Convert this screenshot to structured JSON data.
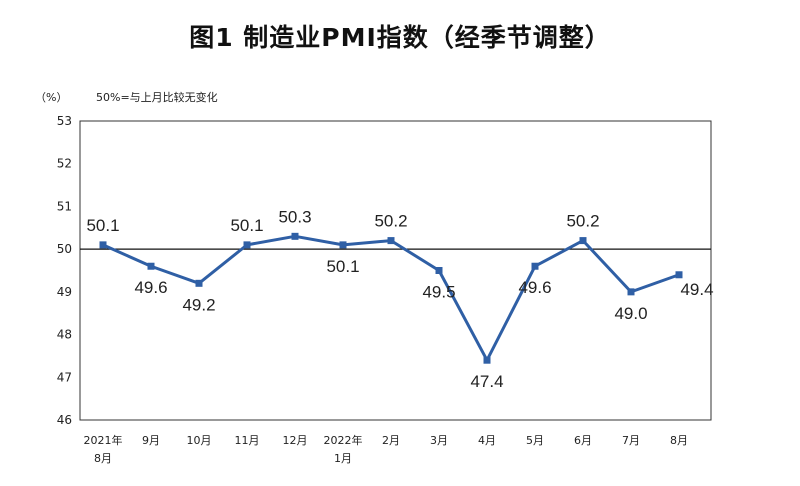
{
  "chart_data": {
    "type": "line",
    "title": "图1 制造业PMI指数（经季节调整）",
    "unit_label": "（%）",
    "reference_note": "50%=与上月比较无变化",
    "reference_value": 50,
    "ylim": [
      46,
      53
    ],
    "yticks": [
      46,
      47,
      48,
      49,
      50,
      51,
      52,
      53
    ],
    "categories": [
      [
        "2021年",
        "8月"
      ],
      [
        "9月"
      ],
      [
        "10月"
      ],
      [
        "11月"
      ],
      [
        "12月"
      ],
      [
        "2022年",
        "1月"
      ],
      [
        "2月"
      ],
      [
        "3月"
      ],
      [
        "4月"
      ],
      [
        "5月"
      ],
      [
        "6月"
      ],
      [
        "7月"
      ],
      [
        "8月"
      ]
    ],
    "values": [
      50.1,
      49.6,
      49.2,
      50.1,
      50.3,
      50.1,
      50.2,
      49.5,
      47.4,
      49.6,
      50.2,
      49.0,
      49.4
    ],
    "value_labels": [
      "50.1",
      "49.6",
      "49.2",
      "50.1",
      "50.3",
      "50.1",
      "50.2",
      "49.5",
      "47.4",
      "49.6",
      "50.2",
      "49.0",
      "49.4"
    ],
    "series_color": "#2f5fa5",
    "grid": false
  }
}
